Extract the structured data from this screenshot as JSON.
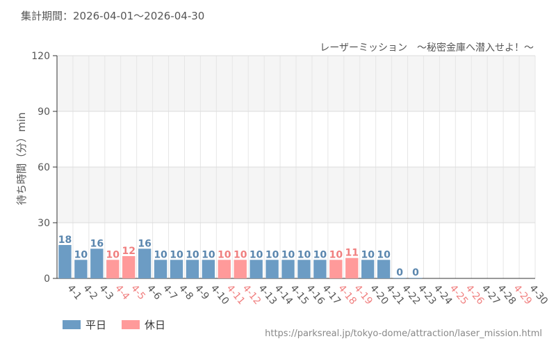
{
  "period_label": "集計期間：2026-04-01～2026-04-30",
  "source_url": "https://parksreal.jp/tokyo-dome/attraction/laser_mission.html",
  "legend": {
    "weekday": "平日",
    "holiday": "休日"
  },
  "colors": {
    "weekday": "#6c9cc4",
    "holiday": "#ff9a9a",
    "weekday_text": "#5a86ae",
    "holiday_text": "#f07f7f",
    "axis_text": "#555555"
  },
  "chart_data": {
    "type": "bar",
    "title": "レーザーミッション　～秘密金庫へ潜入せよ！～",
    "ylabel": "待ち時間（分）min",
    "xlabel": "",
    "ylim": [
      0,
      120
    ],
    "yticks": [
      0,
      30,
      60,
      90,
      120
    ],
    "categories": [
      "4-1",
      "4-2",
      "4-3",
      "4-4",
      "4-5",
      "4-6",
      "4-7",
      "4-8",
      "4-9",
      "4-10",
      "4-11",
      "4-12",
      "4-13",
      "4-14",
      "4-15",
      "4-16",
      "4-17",
      "4-18",
      "4-19",
      "4-20",
      "4-21",
      "4-22",
      "4-23",
      "4-24",
      "4-25",
      "4-26",
      "4-27",
      "4-28",
      "4-29",
      "4-30"
    ],
    "values": [
      18,
      10,
      16,
      10,
      12,
      16,
      10,
      10,
      10,
      10,
      10,
      10,
      10,
      10,
      10,
      10,
      10,
      10,
      11,
      10,
      10,
      0,
      0,
      null,
      null,
      null,
      null,
      null,
      null,
      null
    ],
    "day_type": [
      "weekday",
      "weekday",
      "weekday",
      "holiday",
      "holiday",
      "weekday",
      "weekday",
      "weekday",
      "weekday",
      "weekday",
      "holiday",
      "holiday",
      "weekday",
      "weekday",
      "weekday",
      "weekday",
      "weekday",
      "holiday",
      "holiday",
      "weekday",
      "weekday",
      "weekday",
      "weekday",
      "weekday",
      "holiday",
      "holiday",
      "weekday",
      "weekday",
      "holiday",
      "weekday"
    ],
    "grid": true,
    "legend_position": "bottom-left"
  }
}
